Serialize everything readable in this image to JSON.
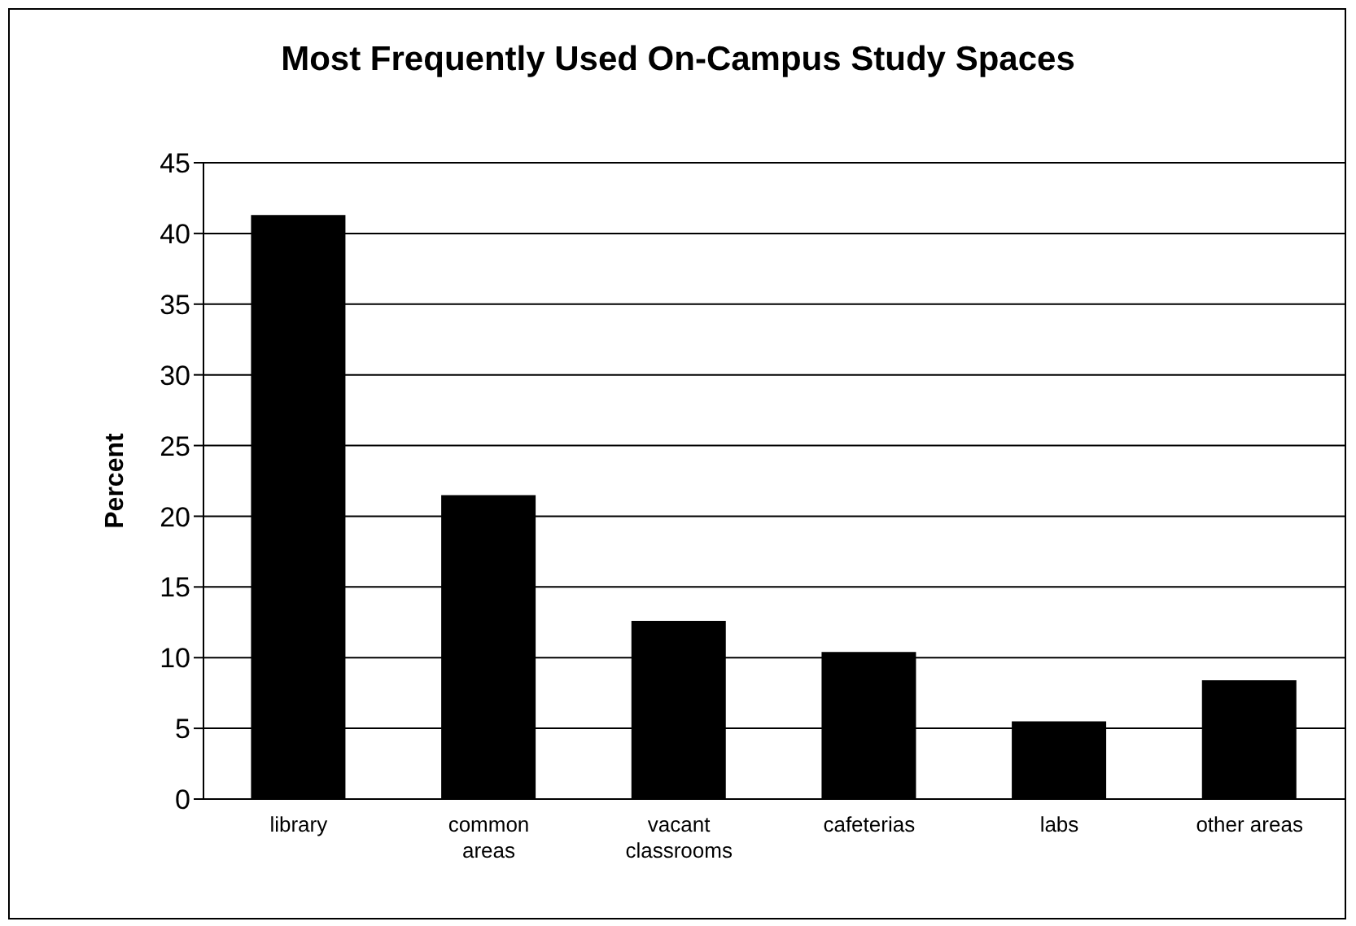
{
  "chart_data": {
    "type": "bar",
    "title": "Most Frequently Used On-Campus Study Spaces",
    "ylabel": "Percent",
    "categories": [
      "library",
      "common areas",
      "vacant classrooms",
      "cafeterias",
      "labs",
      "other areas"
    ],
    "values": [
      41.3,
      21.5,
      12.6,
      10.4,
      5.5,
      8.4
    ],
    "color": "#000000",
    "ylim": [
      0,
      45
    ],
    "yticks": [
      0,
      5,
      10,
      15,
      20,
      25,
      30,
      35,
      40,
      45
    ],
    "grid": "y",
    "legend": false
  }
}
